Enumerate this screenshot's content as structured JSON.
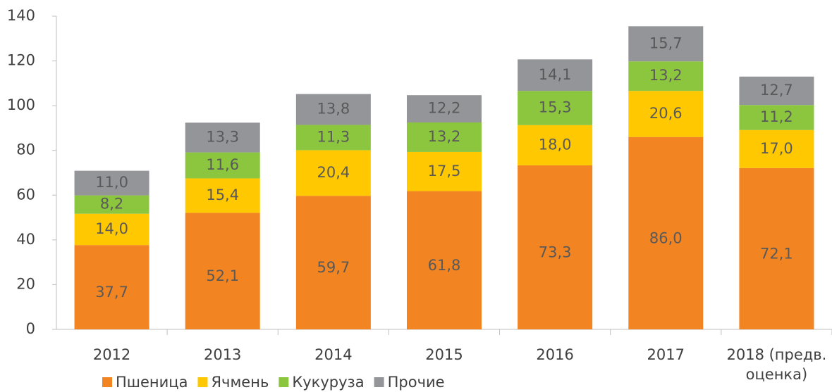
{
  "chart_data": {
    "type": "stacked_bar",
    "categories": [
      "2012",
      "2013",
      "2014",
      "2015",
      "2016",
      "2017",
      "2018 (предв. оценка)"
    ],
    "series": [
      {
        "name": "Пшеница",
        "color": "#f28522",
        "values": [
          37.7,
          52.1,
          59.7,
          61.8,
          73.3,
          86.0,
          72.1
        ],
        "value_labels": [
          "37,7",
          "52,1",
          "59,7",
          "61,8",
          "73,3",
          "86,0",
          "72,1"
        ]
      },
      {
        "name": "Ячмень",
        "color": "#ffc800",
        "values": [
          14.0,
          15.4,
          20.4,
          17.5,
          18.0,
          20.6,
          17.0
        ],
        "value_labels": [
          "14,0",
          "15,4",
          "20,4",
          "17,5",
          "18,0",
          "20,6",
          "17,0"
        ]
      },
      {
        "name": "Кукуруза",
        "color": "#8cc63f",
        "values": [
          8.2,
          11.6,
          11.3,
          13.2,
          15.3,
          13.2,
          11.2
        ],
        "value_labels": [
          "8,2",
          "11,6",
          "11,3",
          "13,2",
          "15,3",
          "13,2",
          "11,2"
        ]
      },
      {
        "name": "Прочие",
        "color": "#939598",
        "values": [
          11.0,
          13.3,
          13.8,
          12.2,
          14.1,
          15.7,
          12.7
        ],
        "value_labels": [
          "11,0",
          "13,3",
          "13,8",
          "12,2",
          "14,1",
          "15,7",
          "12,7"
        ]
      }
    ],
    "ylim": [
      0,
      140
    ],
    "yticks": [
      0,
      20,
      40,
      60,
      80,
      100,
      120,
      140
    ],
    "legend": "bottom-left"
  }
}
